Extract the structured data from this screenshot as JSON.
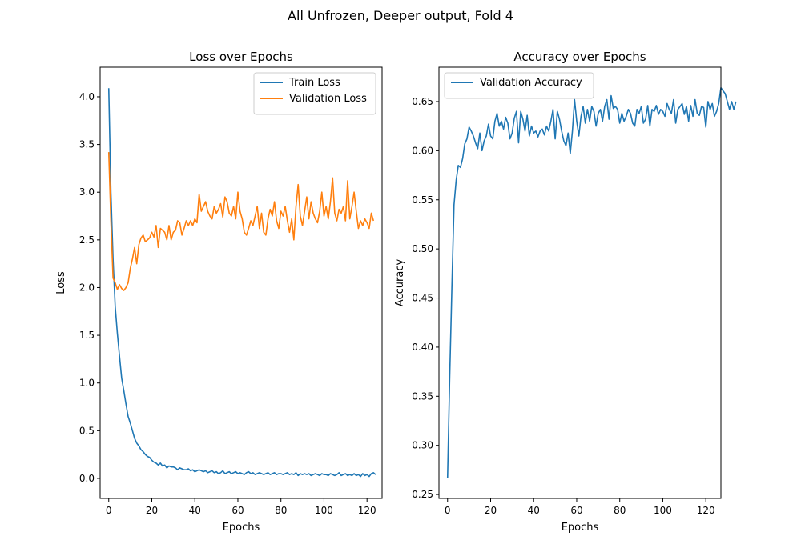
{
  "figure": {
    "suptitle": "All Unfrozen, Deeper output, Fold 4"
  },
  "colors": {
    "train": "#1f77b4",
    "validation": "#ff7f0e",
    "accuracy": "#1f77b4",
    "axes": "#000000",
    "background": "#ffffff"
  },
  "chart_data": [
    {
      "type": "line",
      "title": "Loss over Epochs",
      "xlabel": "Epochs",
      "ylabel": "Loss",
      "xlim": [
        -4,
        127
      ],
      "ylim": [
        -0.21,
        4.31
      ],
      "xticks": [
        0,
        20,
        40,
        60,
        80,
        100,
        120
      ],
      "yticks": [
        0.0,
        0.5,
        1.0,
        1.5,
        2.0,
        2.5,
        3.0,
        3.5,
        4.0
      ],
      "ytick_decimals": 1,
      "grid": false,
      "legend": "upper right",
      "series": [
        {
          "name": "Train Loss",
          "color": "#1f77b4",
          "values": [
            4.09,
            3.0,
            2.3,
            1.8,
            1.52,
            1.28,
            1.05,
            0.92,
            0.78,
            0.65,
            0.58,
            0.5,
            0.42,
            0.37,
            0.34,
            0.3,
            0.28,
            0.25,
            0.23,
            0.22,
            0.19,
            0.17,
            0.16,
            0.14,
            0.16,
            0.13,
            0.14,
            0.11,
            0.13,
            0.12,
            0.12,
            0.11,
            0.09,
            0.11,
            0.1,
            0.09,
            0.09,
            0.1,
            0.08,
            0.09,
            0.07,
            0.08,
            0.09,
            0.08,
            0.07,
            0.08,
            0.06,
            0.07,
            0.08,
            0.06,
            0.07,
            0.05,
            0.06,
            0.08,
            0.05,
            0.06,
            0.07,
            0.05,
            0.06,
            0.07,
            0.05,
            0.06,
            0.05,
            0.04,
            0.06,
            0.07,
            0.05,
            0.06,
            0.04,
            0.05,
            0.06,
            0.05,
            0.04,
            0.05,
            0.06,
            0.04,
            0.05,
            0.06,
            0.04,
            0.05,
            0.05,
            0.04,
            0.05,
            0.06,
            0.04,
            0.05,
            0.04,
            0.06,
            0.03,
            0.05,
            0.04,
            0.05,
            0.04,
            0.05,
            0.03,
            0.04,
            0.05,
            0.04,
            0.03,
            0.05,
            0.04,
            0.04,
            0.03,
            0.05,
            0.04,
            0.03,
            0.04,
            0.06,
            0.03,
            0.04,
            0.05,
            0.03,
            0.04,
            0.03,
            0.05,
            0.03,
            0.04,
            0.02,
            0.05,
            0.03,
            0.04,
            0.02,
            0.05,
            0.06,
            0.04
          ]
        },
        {
          "name": "Validation Loss",
          "color": "#ff7f0e",
          "values": [
            3.42,
            2.7,
            2.1,
            2.05,
            1.98,
            2.03,
            1.99,
            1.97,
            2.0,
            2.05,
            2.2,
            2.3,
            2.42,
            2.25,
            2.45,
            2.52,
            2.55,
            2.48,
            2.5,
            2.52,
            2.58,
            2.53,
            2.65,
            2.42,
            2.62,
            2.6,
            2.58,
            2.5,
            2.65,
            2.5,
            2.58,
            2.6,
            2.7,
            2.68,
            2.55,
            2.62,
            2.7,
            2.65,
            2.7,
            2.65,
            2.72,
            2.68,
            2.98,
            2.8,
            2.85,
            2.9,
            2.8,
            2.75,
            2.72,
            2.85,
            2.78,
            2.82,
            2.88,
            2.74,
            2.95,
            2.9,
            2.78,
            2.75,
            2.85,
            2.72,
            3.0,
            2.8,
            2.72,
            2.58,
            2.55,
            2.62,
            2.7,
            2.65,
            2.75,
            2.85,
            2.62,
            2.78,
            2.58,
            2.55,
            2.72,
            2.82,
            2.75,
            2.9,
            2.7,
            2.62,
            2.8,
            2.75,
            2.85,
            2.7,
            2.58,
            2.72,
            2.5,
            2.85,
            3.08,
            2.75,
            2.65,
            2.8,
            2.95,
            2.72,
            2.9,
            2.78,
            2.72,
            2.68,
            2.8,
            3.0,
            2.75,
            2.85,
            2.72,
            2.9,
            3.15,
            2.78,
            2.7,
            2.82,
            2.78,
            2.85,
            2.7,
            3.12,
            2.72,
            2.85,
            3.0,
            2.8,
            2.62,
            2.7,
            2.65,
            2.72,
            2.68,
            2.62,
            2.78,
            2.7
          ]
        }
      ]
    },
    {
      "type": "line",
      "title": "Accuracy over Epochs",
      "xlabel": "Epochs",
      "ylabel": "Accuracy",
      "xlim": [
        -4,
        127
      ],
      "ylim": [
        0.246,
        0.685
      ],
      "xticks": [
        0,
        20,
        40,
        60,
        80,
        100,
        120
      ],
      "yticks": [
        0.25,
        0.3,
        0.35,
        0.4,
        0.45,
        0.5,
        0.55,
        0.6,
        0.65
      ],
      "ytick_decimals": 2,
      "grid": false,
      "legend": "upper left",
      "series": [
        {
          "name": "Validation Accuracy",
          "color": "#1f77b4",
          "values": [
            0.267,
            0.37,
            0.46,
            0.545,
            0.57,
            0.585,
            0.583,
            0.592,
            0.607,
            0.612,
            0.624,
            0.62,
            0.615,
            0.608,
            0.602,
            0.618,
            0.6,
            0.61,
            0.615,
            0.627,
            0.615,
            0.612,
            0.63,
            0.638,
            0.625,
            0.63,
            0.622,
            0.634,
            0.628,
            0.612,
            0.618,
            0.633,
            0.64,
            0.608,
            0.64,
            0.632,
            0.62,
            0.636,
            0.615,
            0.625,
            0.618,
            0.62,
            0.614,
            0.62,
            0.622,
            0.616,
            0.625,
            0.62,
            0.63,
            0.642,
            0.612,
            0.64,
            0.632,
            0.62,
            0.61,
            0.605,
            0.618,
            0.597,
            0.62,
            0.652,
            0.63,
            0.615,
            0.635,
            0.645,
            0.628,
            0.642,
            0.63,
            0.645,
            0.64,
            0.625,
            0.638,
            0.642,
            0.63,
            0.645,
            0.652,
            0.632,
            0.656,
            0.643,
            0.645,
            0.642,
            0.628,
            0.638,
            0.63,
            0.635,
            0.642,
            0.638,
            0.628,
            0.625,
            0.642,
            0.638,
            0.645,
            0.628,
            0.632,
            0.646,
            0.625,
            0.642,
            0.64,
            0.646,
            0.637,
            0.642,
            0.64,
            0.635,
            0.648,
            0.642,
            0.638,
            0.652,
            0.628,
            0.642,
            0.645,
            0.648,
            0.637,
            0.645,
            0.63,
            0.646,
            0.635,
            0.652,
            0.638,
            0.636,
            0.645,
            0.644,
            0.624,
            0.65,
            0.642,
            0.648,
            0.635,
            0.64,
            0.648,
            0.664,
            0.661,
            0.658,
            0.65,
            0.642,
            0.65,
            0.642,
            0.65
          ]
        }
      ]
    }
  ]
}
